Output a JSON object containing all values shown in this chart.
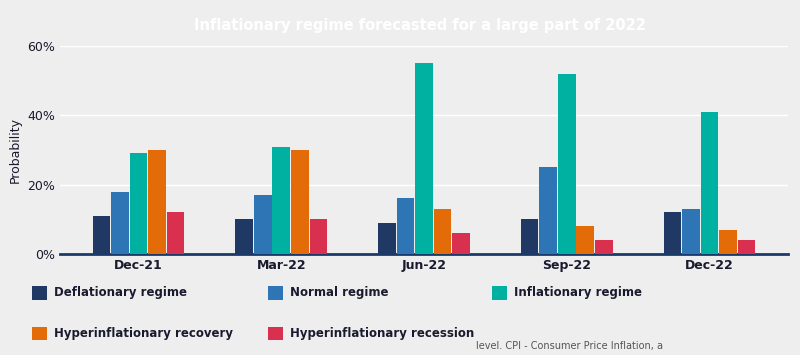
{
  "title": "Inflationary regime forecasted for a large part of 2022",
  "title_bg_color": "#1e73be",
  "title_text_color": "#ffffff",
  "ylabel": "Probability",
  "categories": [
    "Dec-21",
    "Mar-22",
    "Jun-22",
    "Sep-22",
    "Dec-22"
  ],
  "series": {
    "Deflationary regime": [
      11,
      10,
      9,
      10,
      12
    ],
    "Normal regime": [
      18,
      17,
      16,
      25,
      13
    ],
    "Inflationary regime": [
      29,
      31,
      55,
      52,
      41
    ],
    "Hyperinflationary recovery": [
      30,
      30,
      13,
      8,
      7
    ],
    "Hyperinflationary recession": [
      12,
      10,
      6,
      4,
      4
    ]
  },
  "colors": {
    "Deflationary regime": "#1f3864",
    "Normal regime": "#2e75b6",
    "Inflationary regime": "#00b0a0",
    "Hyperinflationary recovery": "#e36c09",
    "Hyperinflationary recession": "#d93050"
  },
  "ylim": [
    0,
    60
  ],
  "yticks": [
    0,
    20,
    40,
    60
  ],
  "ytick_labels": [
    "0%",
    "20%",
    "40%",
    "60%"
  ],
  "bg_color": "#eeeeee",
  "plot_bg_color": "#eeeeee",
  "footer_text": "level. CPI - Consumer Price Inflation, a",
  "bar_width": 0.13
}
